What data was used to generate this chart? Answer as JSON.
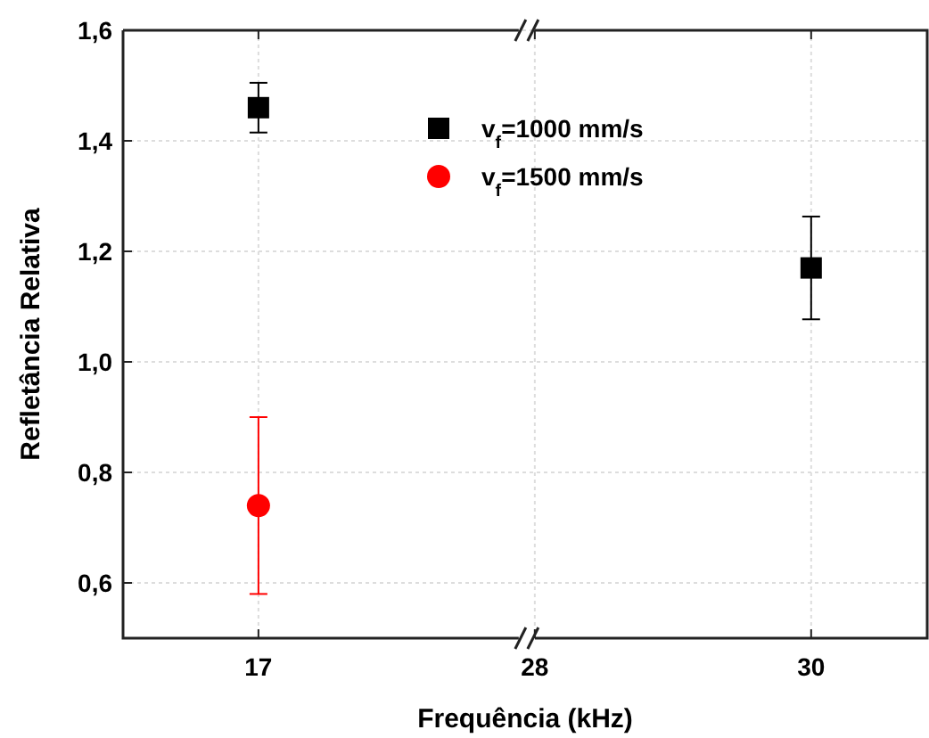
{
  "chart_data": {
    "type": "scatter",
    "xlabel": "Frequência (kHz)",
    "ylabel": "Refletância Relativa",
    "categories": [
      "17",
      "28",
      "30"
    ],
    "series": [
      {
        "name": "v$_{f}$=1000 mm/s",
        "color": "#000000",
        "marker": "square",
        "values": [
          1.46,
          null,
          1.17
        ],
        "errors": [
          0.045,
          null,
          0.093
        ]
      },
      {
        "name": "v$_{f}$=1500 mm/s",
        "color": "#ff0000",
        "marker": "circle",
        "values": [
          0.74,
          null,
          null
        ],
        "errors": [
          [
            0.58,
            0.9
          ],
          null,
          null
        ]
      }
    ],
    "ylim": [
      0.5,
      1.6
    ],
    "yticks": [
      {
        "value": 0.6,
        "label": "0,6"
      },
      {
        "value": 0.8,
        "label": "0,8"
      },
      {
        "value": 1.0,
        "label": "1,0"
      },
      {
        "value": 1.2,
        "label": "1,2"
      },
      {
        "value": 1.4,
        "label": "1,4"
      },
      {
        "value": 1.6,
        "label": "1,6"
      }
    ],
    "grid": true,
    "legend": "top"
  }
}
